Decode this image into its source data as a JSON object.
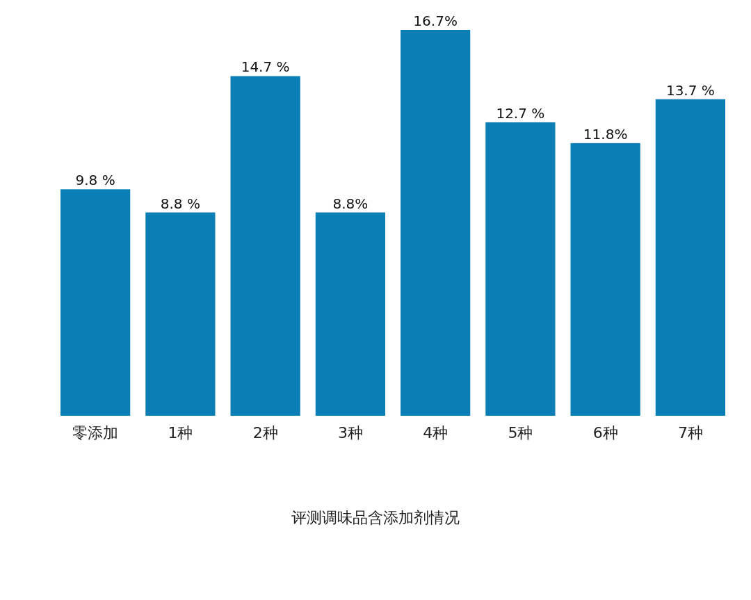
{
  "chart_data": {
    "type": "bar",
    "title": "评测调味品含添加剂情况",
    "categories": [
      "零添加",
      "1种",
      "2种",
      "3种",
      "4种",
      "5种",
      "6种",
      "7种"
    ],
    "values": [
      9.8,
      8.8,
      14.7,
      8.8,
      16.7,
      12.7,
      11.8,
      13.7
    ],
    "value_labels": [
      "9.8 %",
      "8.8 %",
      "14.7 %",
      "8.8%",
      "16.7%",
      "12.7 %",
      "11.8%",
      "13.7 %"
    ],
    "color": "#0b7fb5"
  }
}
